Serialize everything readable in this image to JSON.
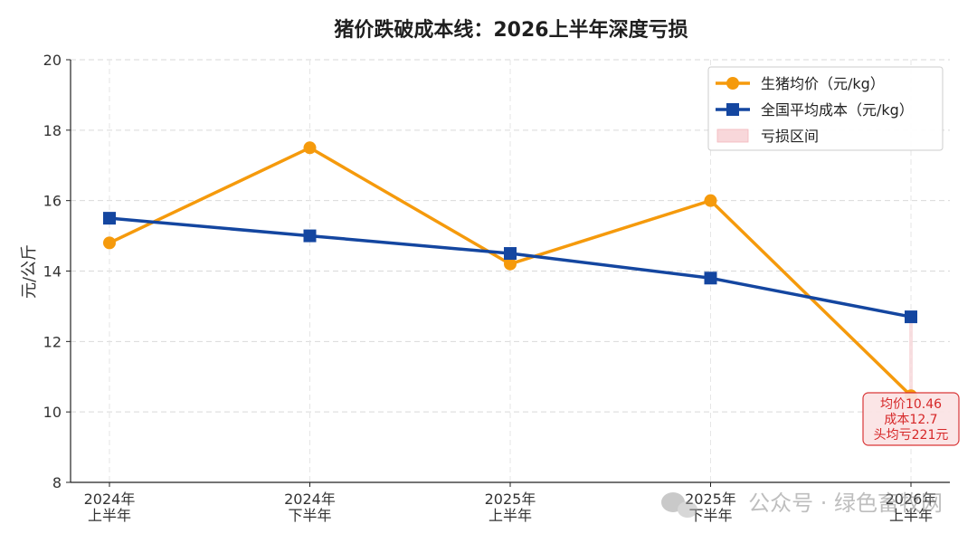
{
  "chart_data": {
    "type": "line",
    "title": "猪价跌破成本线：2026上半年深度亏损",
    "ylabel": "元/公斤",
    "xlabel": "",
    "ylim": [
      8,
      20
    ],
    "yticks": [
      8,
      10,
      12,
      14,
      16,
      18,
      20
    ],
    "grid": true,
    "legend_position": "top-right",
    "categories": [
      [
        "2024年",
        "上半年"
      ],
      [
        "2024年",
        "下半年"
      ],
      [
        "2025年",
        "上半年"
      ],
      [
        "2025年",
        "下半年"
      ],
      [
        "2026年",
        "上半年"
      ]
    ],
    "series": [
      {
        "name": "生猪均价（元/kg）",
        "color": "#f59a0c",
        "marker": "circle",
        "values": [
          14.8,
          17.5,
          14.2,
          16.0,
          10.46
        ]
      },
      {
        "name": "全国平均成本（元/kg）",
        "color": "#1446a0",
        "marker": "square",
        "values": [
          15.5,
          15.0,
          14.5,
          13.8,
          12.7
        ]
      }
    ],
    "loss_band": {
      "name": "亏损区间",
      "color": "#f8d7da"
    },
    "annotation": {
      "category_index": 4,
      "lines": [
        "均价10.46",
        "成本12.7",
        "头均亏221元"
      ],
      "color": "#d62728"
    }
  },
  "watermark": "公众号 · 绿色畜牧网"
}
